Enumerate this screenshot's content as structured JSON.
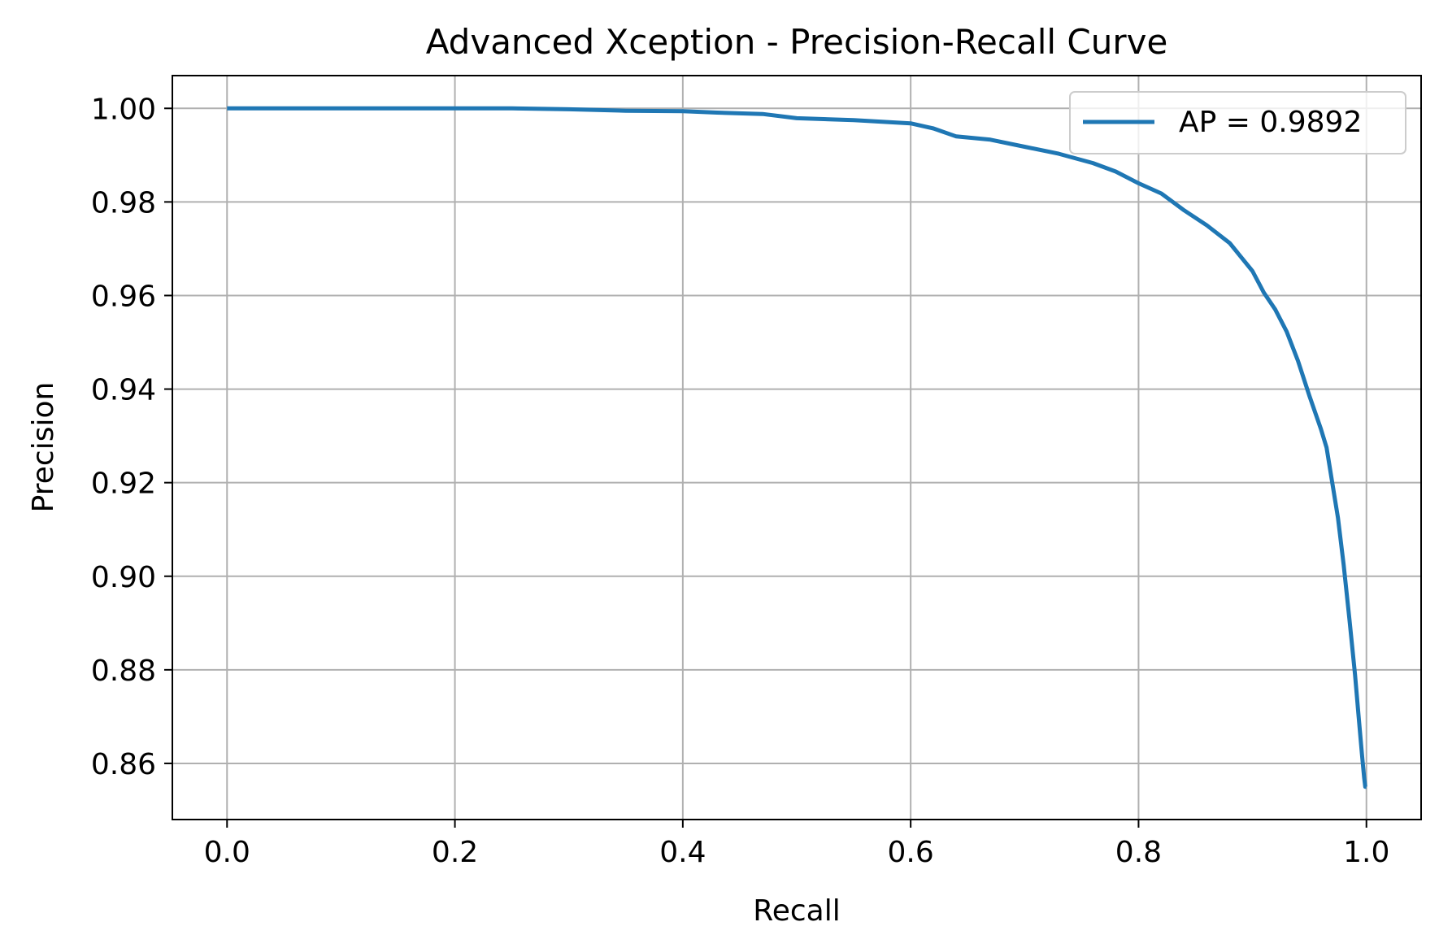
{
  "chart_data": {
    "type": "line",
    "title": "Advanced Xception - Precision-Recall Curve",
    "xlabel": "Recall",
    "ylabel": "Precision",
    "xlim": [
      -0.048,
      1.048
    ],
    "ylim": [
      0.848,
      1.007
    ],
    "xticks": [
      0.0,
      0.2,
      0.4,
      0.6,
      0.8,
      1.0
    ],
    "xtick_labels": [
      "0.0",
      "0.2",
      "0.4",
      "0.6",
      "0.8",
      "1.0"
    ],
    "yticks": [
      0.86,
      0.88,
      0.9,
      0.92,
      0.94,
      0.96,
      0.98,
      1.0
    ],
    "ytick_labels": [
      "0.86",
      "0.88",
      "0.90",
      "0.92",
      "0.94",
      "0.96",
      "0.98",
      "1.00"
    ],
    "grid": true,
    "legend_position": "top-right",
    "colors": {
      "series": "#1f77b4",
      "grid": "#b0b0b0"
    },
    "series": [
      {
        "name": "AP = 0.9892",
        "x": [
          0.0,
          0.1,
          0.2,
          0.25,
          0.3,
          0.35,
          0.4,
          0.43,
          0.47,
          0.5,
          0.55,
          0.6,
          0.62,
          0.64,
          0.67,
          0.7,
          0.73,
          0.76,
          0.78,
          0.8,
          0.82,
          0.84,
          0.86,
          0.88,
          0.9,
          0.91,
          0.92,
          0.93,
          0.94,
          0.95,
          0.96,
          0.965,
          0.97,
          0.975,
          0.98,
          0.985,
          0.99,
          0.993,
          0.996,
          0.998,
          0.999,
          1.0
        ],
        "y": [
          1.0,
          1.0,
          1.0,
          1.0,
          0.9998,
          0.9995,
          0.9994,
          0.9991,
          0.9988,
          0.9979,
          0.9975,
          0.9968,
          0.9957,
          0.994,
          0.9933,
          0.9918,
          0.9903,
          0.9883,
          0.9865,
          0.984,
          0.9818,
          0.9782,
          0.975,
          0.9712,
          0.9652,
          0.9606,
          0.957,
          0.9523,
          0.946,
          0.9385,
          0.9315,
          0.9275,
          0.92,
          0.9125,
          0.9025,
          0.891,
          0.879,
          0.8705,
          0.8622,
          0.857,
          0.855,
          0.855
        ]
      }
    ]
  }
}
